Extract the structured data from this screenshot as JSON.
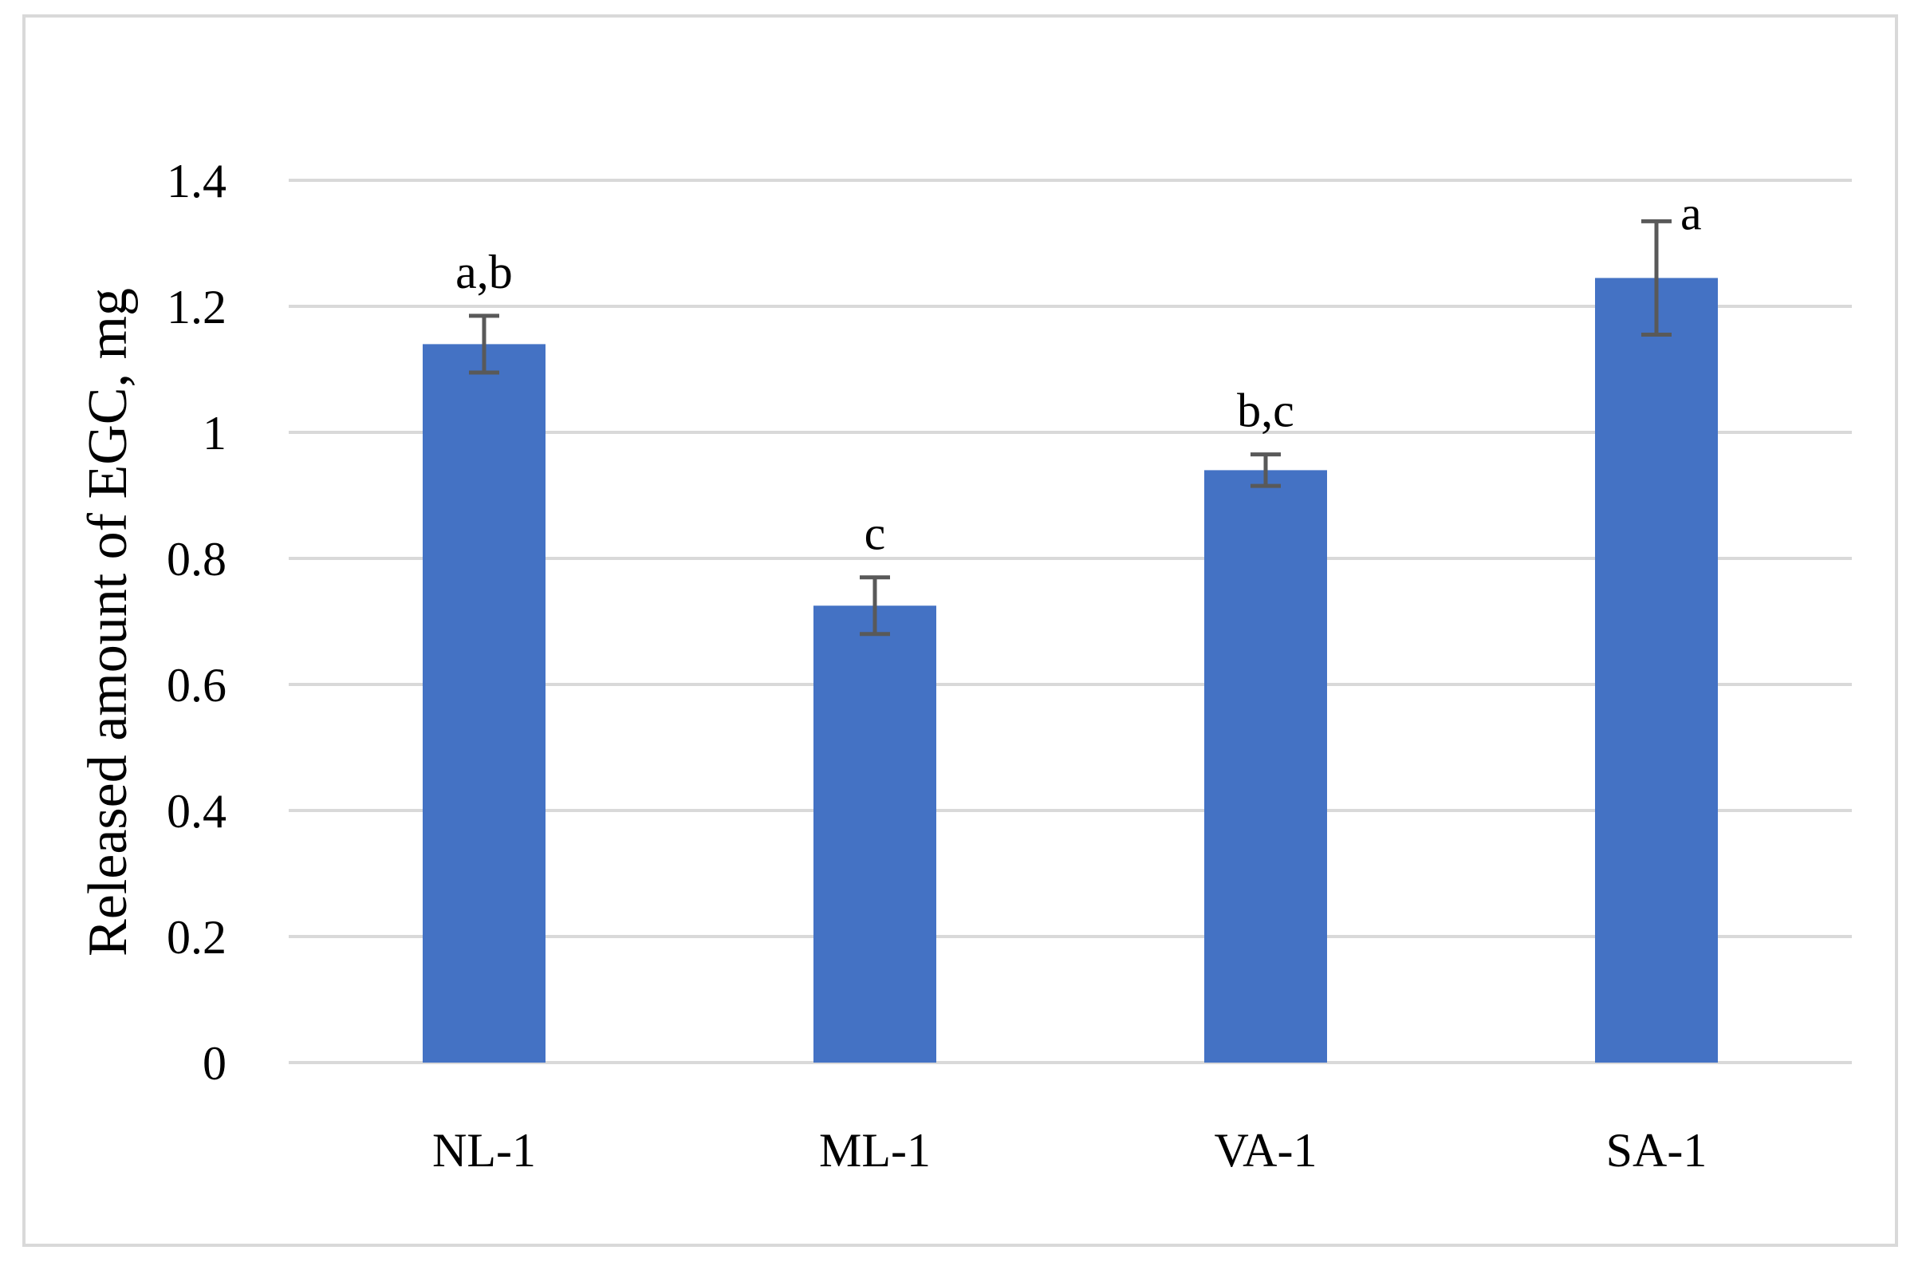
{
  "chart_data": {
    "type": "bar",
    "ylabel": "Released amount of EGC, mg",
    "ylim": [
      0,
      1.4
    ],
    "yticks": [
      "0",
      "0.2",
      "0.4",
      "0.6",
      "0.8",
      "1",
      "1.2",
      "1.4"
    ],
    "categories": [
      "NL-1",
      "ML-1",
      "VA-1",
      "SA-1"
    ],
    "values": [
      1.14,
      0.725,
      0.94,
      1.245
    ],
    "errors": [
      0.045,
      0.045,
      0.025,
      0.09
    ],
    "significance_labels": [
      "a,b",
      "c",
      "b,c",
      "a"
    ],
    "grid": true,
    "legend": "none",
    "colors": {
      "bar": "#4472c4",
      "error": "#595959",
      "grid": "#d9d9d9",
      "frame": "#d9d9d9"
    }
  }
}
